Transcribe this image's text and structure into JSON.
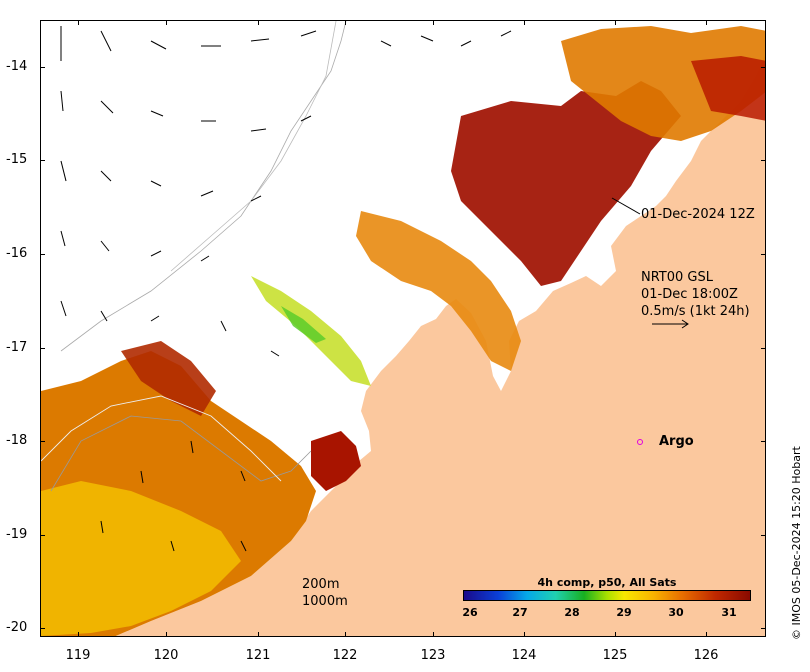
{
  "map": {
    "y_axis_labels": [
      "-14",
      "-15",
      "-16",
      "-17",
      "-18",
      "-19",
      "-20"
    ],
    "x_axis_labels": [
      "119",
      "120",
      "121",
      "122",
      "123",
      "124",
      "125",
      "126"
    ],
    "date_label": "01-Dec-2024 12Z",
    "current_info": {
      "line1": "NRT00 GSL",
      "line2": "01-Dec 18:00Z",
      "line3": "0.5m/s (1kt 24h)"
    },
    "argo_label": "Argo",
    "depth_contours": {
      "shallow": "200m",
      "deep": "1000m"
    },
    "colorbar": {
      "title": "4h comp, p50, All Sats",
      "ticks": [
        "26",
        "27",
        "28",
        "29",
        "30",
        "31"
      ]
    },
    "credit": "© IMOS 05-Dec-2024 15:20 Hobart",
    "colors": {
      "land": "#fbc89e",
      "argo": "#e000e0",
      "sst_hot": "#a01000",
      "sst_warm": "#e07a00",
      "sst_mid": "#f2c400",
      "sst_cool": "#8fdc2a"
    }
  }
}
